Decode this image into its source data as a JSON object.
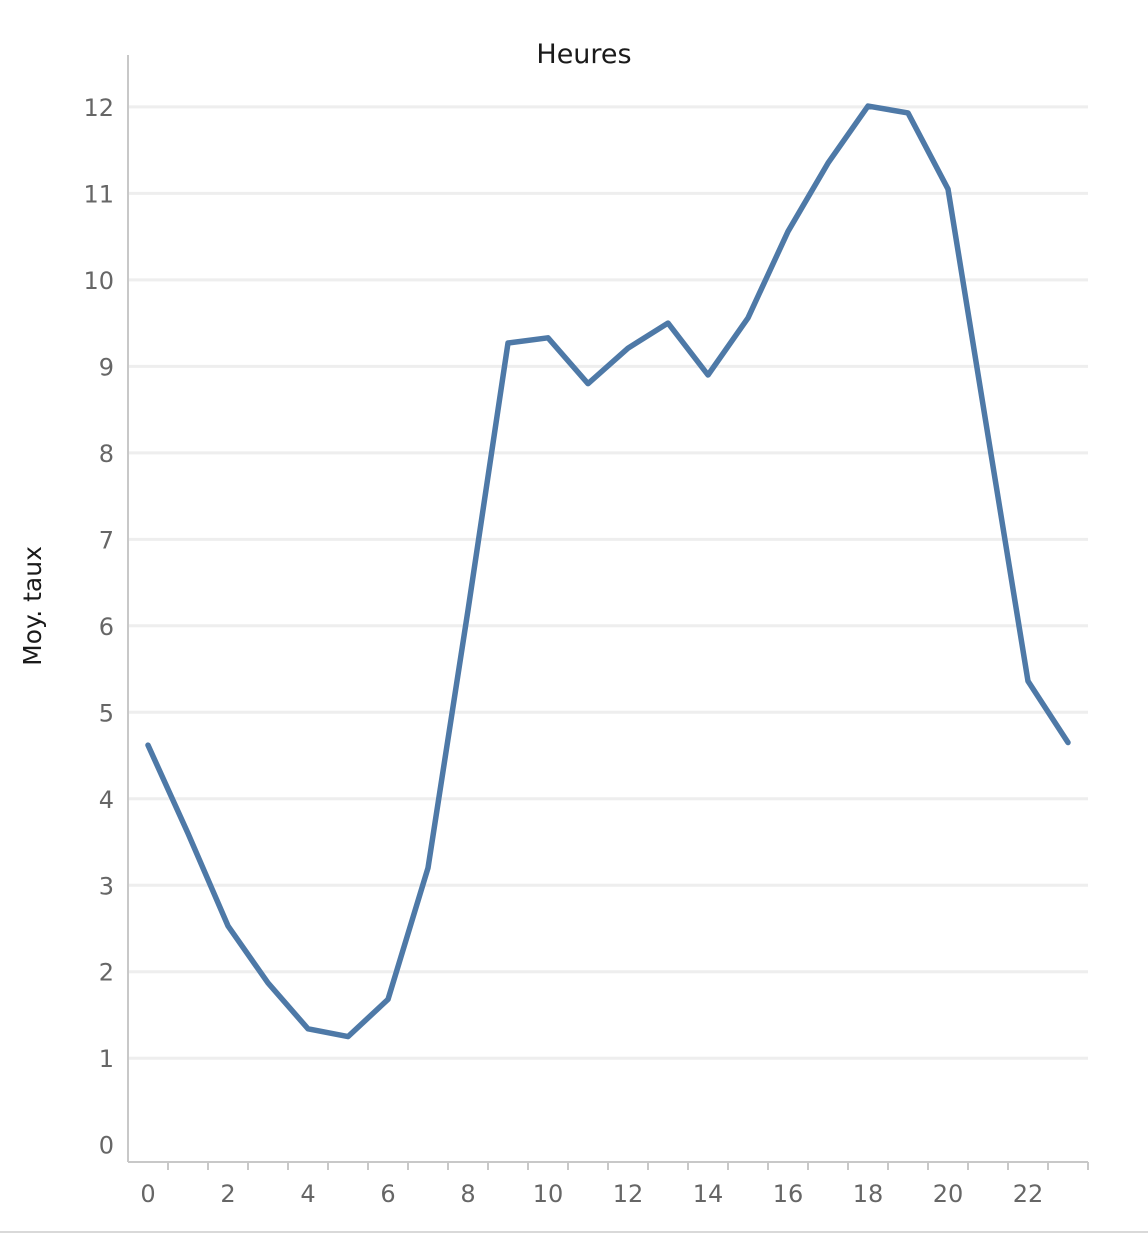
{
  "chart_data": {
    "type": "line",
    "title": "Heures",
    "xlabel": "Heures",
    "ylabel": "Moy. taux",
    "x": [
      0,
      1,
      2,
      3,
      4,
      5,
      6,
      7,
      8,
      9,
      10,
      11,
      12,
      13,
      14,
      15,
      16,
      17,
      18,
      19,
      20,
      21,
      22,
      23
    ],
    "xticks": [
      0,
      2,
      4,
      6,
      8,
      10,
      12,
      14,
      16,
      18,
      20,
      22
    ],
    "yticks": [
      0,
      1,
      2,
      3,
      4,
      5,
      6,
      7,
      8,
      9,
      10,
      11,
      12
    ],
    "xlim": [
      -0.5,
      23.5
    ],
    "ylim": [
      -0.2,
      12.6
    ],
    "grid": true,
    "series": [
      {
        "values": [
          4.62,
          3.6,
          2.53,
          1.87,
          1.34,
          1.25,
          1.68,
          3.2,
          6.18,
          9.27,
          9.33,
          8.8,
          9.21,
          9.5,
          8.9,
          9.56,
          10.56,
          11.35,
          12.01,
          11.93,
          11.05,
          8.2,
          5.36,
          4.65
        ],
        "color": "#4e79a7"
      }
    ]
  }
}
